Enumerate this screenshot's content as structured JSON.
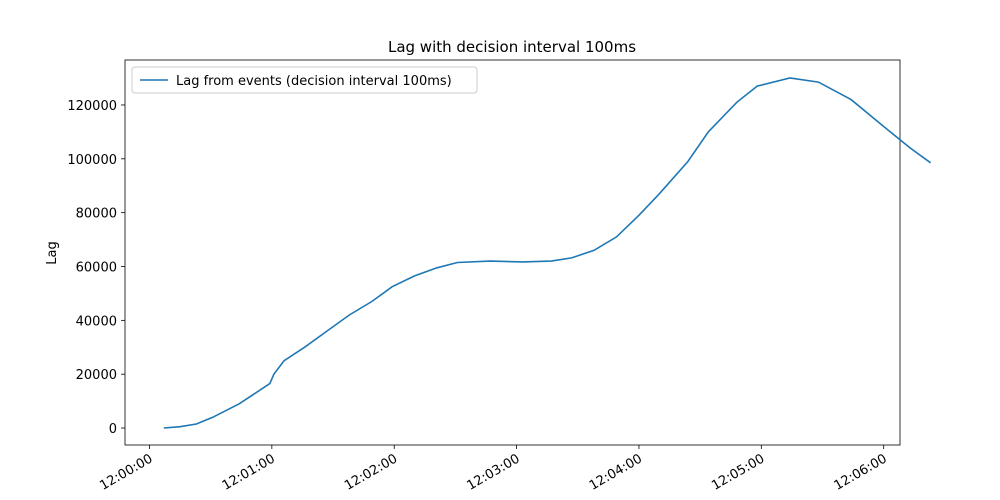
{
  "chart_data": {
    "type": "line",
    "title": "Lag with decision interval 100ms",
    "y_label": "Lag",
    "x": [
      "12:00:07",
      "12:00:15",
      "12:00:23",
      "12:00:31",
      "12:00:44",
      "12:00:59",
      "12:01:01",
      "12:01:06",
      "12:01:16",
      "12:01:27",
      "12:01:38",
      "12:01:49",
      "12:01:59",
      "12:02:10",
      "12:02:21",
      "12:02:31",
      "12:02:47",
      "12:03:03",
      "12:03:17",
      "12:03:27",
      "12:03:38",
      "12:03:49",
      "12:04:00",
      "12:04:10",
      "12:04:24",
      "12:04:34",
      "12:04:48",
      "12:04:58",
      "12:05:14",
      "12:05:28",
      "12:05:44",
      "12:06:00",
      "12:06:13",
      "12:06:23"
    ],
    "series": [
      {
        "name": "Lag from events (decision interval 100ms)",
        "color": "#1f77b4",
        "values": [
          0,
          500,
          1500,
          4000,
          9000,
          16500,
          20000,
          25000,
          30000,
          36000,
          42000,
          47000,
          52500,
          56500,
          59500,
          61500,
          62000,
          61700,
          62000,
          63200,
          66000,
          71000,
          79000,
          87000,
          99000,
          110000,
          121000,
          127000,
          130000,
          128500,
          122000,
          112000,
          104000,
          98500
        ]
      }
    ],
    "xlim": [
      "11:59:48",
      "12:06:08"
    ],
    "xticks": [
      "12:00:00",
      "12:01:00",
      "12:02:00",
      "12:03:00",
      "12:04:00",
      "12:05:00",
      "12:06:00"
    ],
    "ylim": [
      -6300,
      136700
    ],
    "yticks": [
      0,
      20000,
      40000,
      60000,
      80000,
      100000,
      120000
    ],
    "grid": false,
    "legend": "upper-left"
  }
}
